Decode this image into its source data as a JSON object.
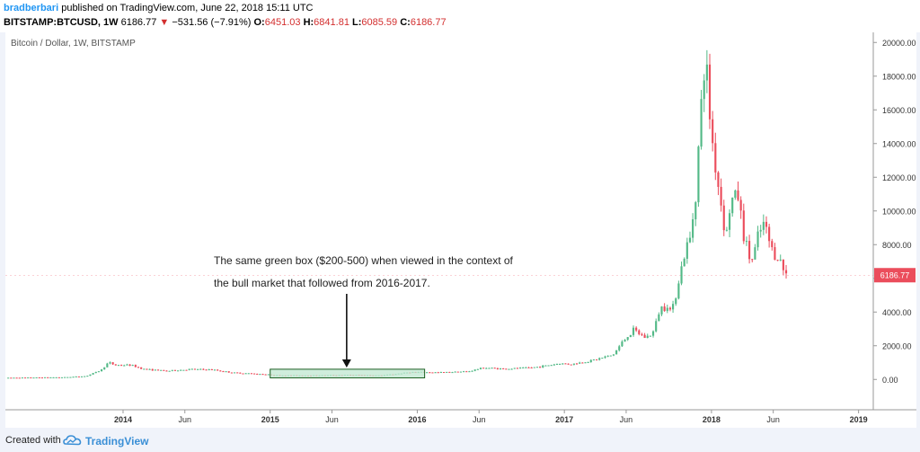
{
  "header": {
    "author": "bradberbari",
    "published": "published on TradingView.com, June 22, 2018 15:11 UTC",
    "symbol": "BITSTAMP:BTCUSD, 1W",
    "price": "6186.77",
    "change": "−531.56 (−7.91%)",
    "open_label": "O:",
    "open": "6451.03",
    "high_label": "H:",
    "high": "6841.81",
    "low_label": "L:",
    "low": "6085.59",
    "close_label": "C:",
    "close": "6186.77"
  },
  "footer": {
    "created_with": "Created with",
    "brand": "TradingView"
  },
  "colors": {
    "up": "#53b987",
    "down": "#eb4d5c",
    "box_fill": "#bfe7d0",
    "box_stroke": "#1b5e20",
    "last_price_bg": "#eb4d5c"
  },
  "chart_data": {
    "type": "candlestick",
    "title": "Bitcoin / Dollar, 1W, BITSTAMP",
    "x_ticks": [
      "2014",
      "Jun",
      "2015",
      "Jun",
      "2016",
      "Jun",
      "2017",
      "Jun",
      "2018",
      "Jun",
      "2019"
    ],
    "x_tick_years": [
      2014.0,
      2014.42,
      2015.0,
      2015.42,
      2016.0,
      2016.42,
      2017.0,
      2017.42,
      2018.0,
      2018.42,
      2019.0
    ],
    "x_range": [
      2013.2,
      2019.1
    ],
    "y_ticks": [
      "0.00",
      "2000.00",
      "4000.00",
      "6000.00",
      "8000.00",
      "10000.00",
      "12000.00",
      "14000.00",
      "16000.00",
      "18000.00",
      "20000.00"
    ],
    "y_tick_values": [
      0,
      2000,
      4000,
      6000,
      8000,
      10000,
      12000,
      14000,
      16000,
      18000,
      20000
    ],
    "ylim": [
      -1800,
      20600
    ],
    "last_price": 6186.77,
    "last_price_label": "6186.77",
    "price_path": [
      [
        2013.2,
        100
      ],
      [
        2013.6,
        130
      ],
      [
        2013.75,
        200
      ],
      [
        2013.85,
        550
      ],
      [
        2013.9,
        1000
      ],
      [
        2013.95,
        850
      ],
      [
        2014.05,
        850
      ],
      [
        2014.15,
        600
      ],
      [
        2014.3,
        500
      ],
      [
        2014.45,
        600
      ],
      [
        2014.6,
        580
      ],
      [
        2014.75,
        400
      ],
      [
        2014.95,
        320
      ],
      [
        2015.05,
        240
      ],
      [
        2015.3,
        240
      ],
      [
        2015.55,
        270
      ],
      [
        2015.75,
        240
      ],
      [
        2015.85,
        320
      ],
      [
        2015.95,
        430
      ],
      [
        2016.15,
        420
      ],
      [
        2016.35,
        480
      ],
      [
        2016.45,
        700
      ],
      [
        2016.6,
        620
      ],
      [
        2016.8,
        720
      ],
      [
        2016.97,
        950
      ],
      [
        2017.05,
        900
      ],
      [
        2017.2,
        1150
      ],
      [
        2017.33,
        1450
      ],
      [
        2017.42,
        2500
      ],
      [
        2017.47,
        2900
      ],
      [
        2017.55,
        2500
      ],
      [
        2017.6,
        2700
      ],
      [
        2017.65,
        4200
      ],
      [
        2017.7,
        4500
      ],
      [
        2017.73,
        3900
      ],
      [
        2017.77,
        5700
      ],
      [
        2017.82,
        7500
      ],
      [
        2017.86,
        8500
      ],
      [
        2017.9,
        12000
      ],
      [
        2017.94,
        17500
      ],
      [
        2017.96,
        19000
      ],
      [
        2018.0,
        14500
      ],
      [
        2018.05,
        11300
      ],
      [
        2018.1,
        8500
      ],
      [
        2018.13,
        10500
      ],
      [
        2018.18,
        11000
      ],
      [
        2018.22,
        8500
      ],
      [
        2018.27,
        6900
      ],
      [
        2018.31,
        8100
      ],
      [
        2018.35,
        9300
      ],
      [
        2018.38,
        8500
      ],
      [
        2018.42,
        7500
      ],
      [
        2018.45,
        7400
      ],
      [
        2018.48,
        6700
      ],
      [
        2018.5,
        6300
      ],
      [
        2018.52,
        6186.77
      ]
    ],
    "annotation": {
      "text_lines": [
        "The same green box ($200-500) when viewed in the context of",
        "the bull market that followed from 2016-2017."
      ],
      "arrow_to": [
        2015.52,
        600
      ]
    },
    "highlight_box": {
      "x0": 2015.0,
      "x1": 2016.05,
      "y0": 200,
      "y1": 500
    }
  }
}
